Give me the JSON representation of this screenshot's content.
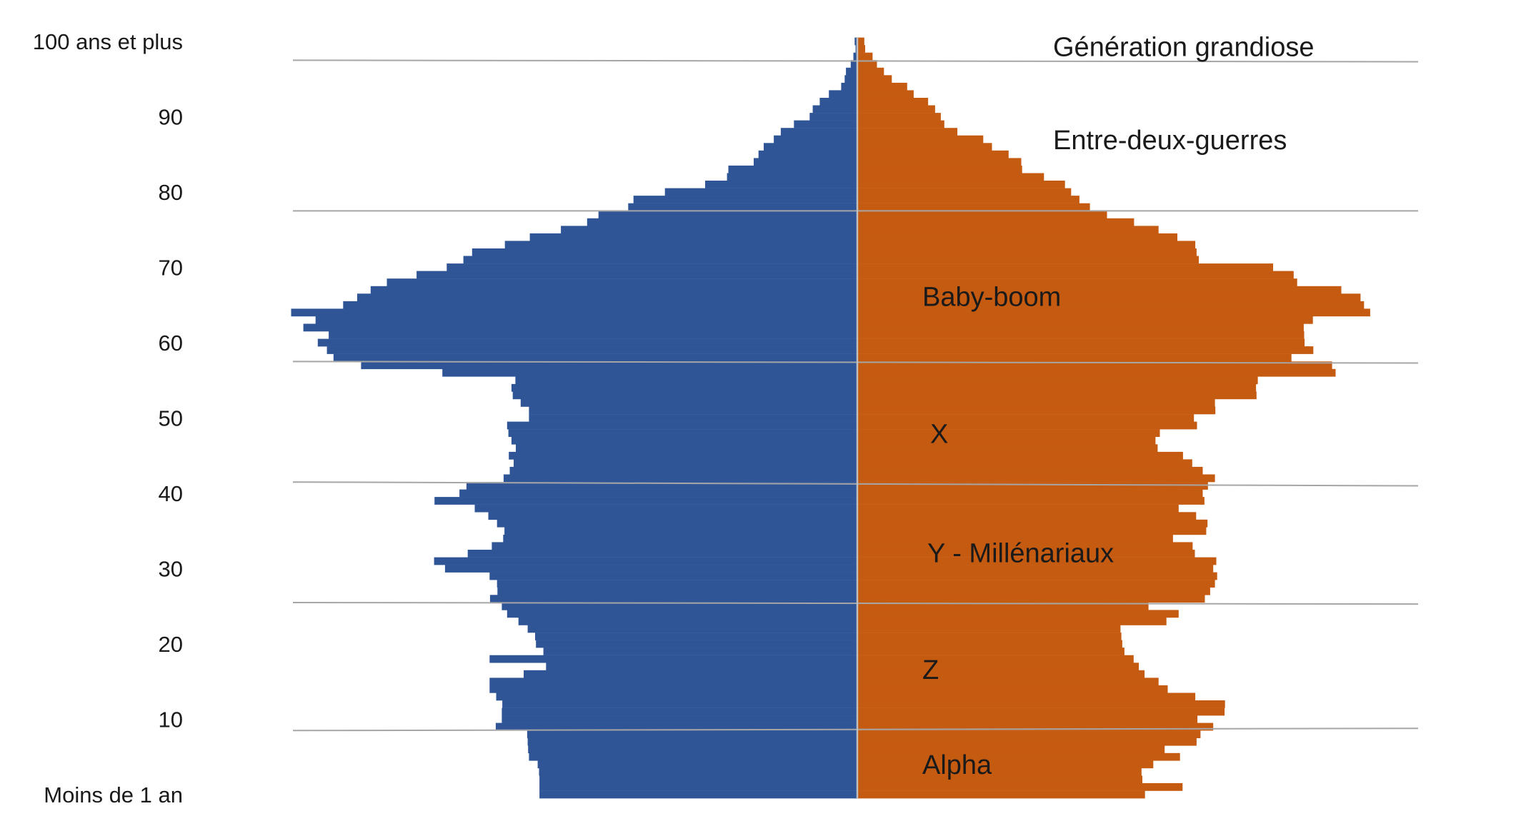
{
  "chart_data": {
    "type": "bar",
    "orientation": "horizontal",
    "layout": "population-pyramid",
    "title": "",
    "xlabel": "",
    "ylabel": "",
    "y_tick_labels": [
      {
        "age": 100,
        "label": "100 ans et plus"
      },
      {
        "age": 90,
        "label": "90"
      },
      {
        "age": 80,
        "label": "80"
      },
      {
        "age": 70,
        "label": "70"
      },
      {
        "age": 60,
        "label": "60"
      },
      {
        "age": 50,
        "label": "50"
      },
      {
        "age": 40,
        "label": "40"
      },
      {
        "age": 30,
        "label": "30"
      },
      {
        "age": 20,
        "label": "20"
      },
      {
        "age": 10,
        "label": "10"
      },
      {
        "age": 0,
        "label": "Moins de 1 an"
      }
    ],
    "ages_count": 101,
    "series": [
      {
        "side": "left",
        "color": "#2f5597",
        "values": [
          72.7,
          72.7,
          72.7,
          72.8,
          73.1,
          75.1,
          75.3,
          75.4,
          75.5,
          82.7,
          81.3,
          81.3,
          81.2,
          82.6,
          84.1,
          84.1,
          76.3,
          71.2,
          84.1,
          71.8,
          73.5,
          73.7,
          75.4,
          77.5,
          80.1,
          81.3,
          84,
          82.3,
          82.4,
          84.1,
          94.3,
          96.8,
          89.1,
          83.6,
          81,
          80.7,
          82.4,
          84.4,
          87.5,
          96.7,
          91,
          89.4,
          80.9,
          79.5,
          78.6,
          79.7,
          78.1,
          79.1,
          79.8,
          80.1,
          75.1,
          75.1,
          77,
          78.8,
          79.1,
          78.2,
          94.9,
          113.5,
          119.8,
          121.3,
          123.4,
          120.9,
          126.7,
          123.9,
          129.5,
          117.6,
          114.4,
          111.3,
          107.6,
          100.8,
          93.9,
          90.1,
          88.1,
          80.6,
          74.9,
          67.8,
          61.8,
          59.2,
          52.4,
          51.2,
          44,
          34.8,
          29.8,
          29.5,
          23.7,
          22.6,
          21.4,
          19.1,
          17.5,
          14.5,
          10.9,
          10.2,
          8.6,
          6.5,
          3.7,
          2.9,
          2.6,
          1.5,
          0.9,
          0.4,
          0.6
        ]
      },
      {
        "side": "right",
        "color": "#c55a11",
        "values": [
          65.8,
          74.4,
          65.2,
          65,
          67.7,
          73.8,
          70.3,
          77.6,
          78.5,
          81.4,
          77.8,
          84,
          84.1,
          77.3,
          71,
          68.9,
          65.7,
          64.4,
          63.2,
          61.1,
          60.6,
          60.4,
          60.2,
          70.7,
          73.5,
          66.6,
          79.5,
          80.7,
          81.8,
          82.3,
          81.4,
          82.1,
          77.2,
          76.7,
          72.2,
          79.8,
          80.1,
          77.5,
          73.5,
          79.4,
          79,
          80.2,
          81.8,
          79,
          76.6,
          74.5,
          68.7,
          68.2,
          69.2,
          77.7,
          77,
          81.9,
          81.8,
          91.3,
          91.2,
          91.6,
          109.4,
          108.6,
          99.3,
          104.3,
          102.3,
          102.2,
          102.1,
          104.2,
          117.3,
          115.9,
          115.1,
          110.7,
          100.6,
          99.8,
          95.1,
          78.1,
          77.6,
          77.3,
          73.2,
          68.9,
          63.3,
          57.1,
          53.2,
          50.8,
          48.9,
          47.5,
          42.7,
          37.7,
          37.5,
          34.6,
          30.8,
          28.8,
          22.9,
          19.9,
          19.1,
          17.8,
          16.2,
          12.9,
          11.4,
          7.9,
          6.1,
          4.5,
          3.5,
          1.8,
          1.6
        ]
      }
    ],
    "separators": [
      {
        "age_left": 97.5,
        "age_right": 97.3
      },
      {
        "age_left": 77.5,
        "age_right": 77.5
      },
      {
        "age_left": 57.5,
        "age_right": 57.3
      },
      {
        "age_left": 41.5,
        "age_right": 41
      },
      {
        "age_left": 25.5,
        "age_right": 25.3
      },
      {
        "age_left": 8.5,
        "age_right": 8.8
      }
    ],
    "annotations": [
      {
        "text": "Génération grandiose",
        "age": 99.3
      },
      {
        "text": "Entre-deux-guerres",
        "age": 86.9
      },
      {
        "text": "Baby-boom",
        "age": 66.1
      },
      {
        "text": "X",
        "age": 47.9
      },
      {
        "text": "Y - Millénariaux",
        "age": 32.1
      },
      {
        "text": "Z",
        "age": 16.6
      },
      {
        "text": "Alpha",
        "age": 4.0
      }
    ]
  }
}
